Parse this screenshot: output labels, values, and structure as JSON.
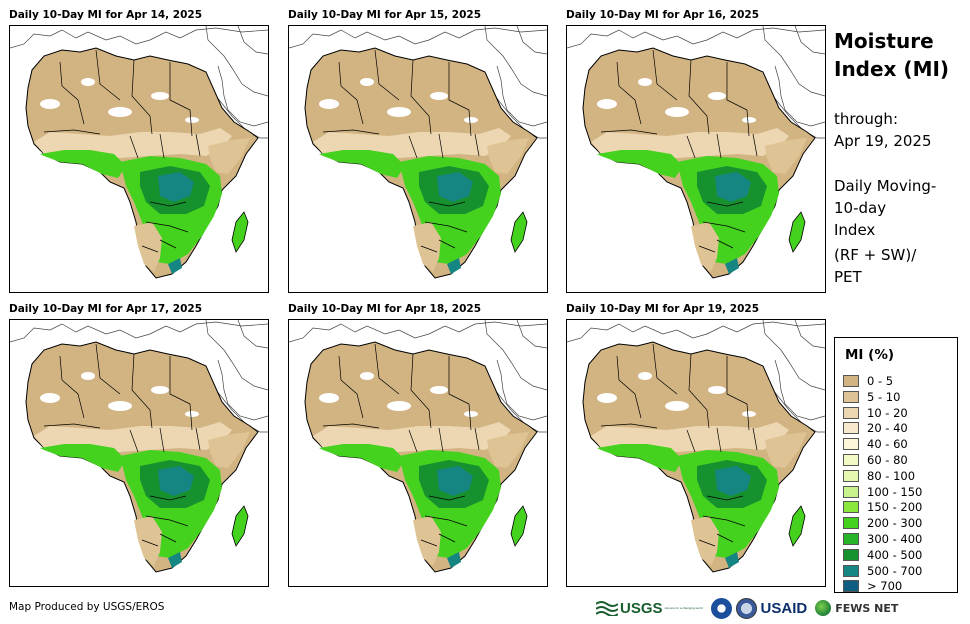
{
  "panels": [
    {
      "title": "Daily 10-Day MI for Apr 14, 2025"
    },
    {
      "title": "Daily 10-Day MI for Apr 15, 2025"
    },
    {
      "title": "Daily 10-Day MI for Apr 16, 2025"
    },
    {
      "title": "Daily 10-Day MI for Apr 17, 2025"
    },
    {
      "title": "Daily 10-Day MI for Apr 18, 2025"
    },
    {
      "title": "Daily 10-Day MI for Apr 19, 2025"
    }
  ],
  "sidebar": {
    "title_line1": "Moisture",
    "title_line2": "Index (MI)",
    "through_label": "through:",
    "through_date": "Apr 19, 2025",
    "desc_line1": "Daily Moving-",
    "desc_line2": "10-day",
    "desc_line3": "Index",
    "formula_line1": "(RF + SW)/",
    "formula_line2": "PET"
  },
  "legend": {
    "title": "MI (%)",
    "items": [
      {
        "label": "0 - 5",
        "color": "#d2b483"
      },
      {
        "label": "5 - 10",
        "color": "#dec394"
      },
      {
        "label": "10 - 20",
        "color": "#ecd7b2"
      },
      {
        "label": "20 - 40",
        "color": "#f6e9cc"
      },
      {
        "label": "40 - 60",
        "color": "#fcf7d8"
      },
      {
        "label": "60 - 80",
        "color": "#f4fac6"
      },
      {
        "label": "80 - 100",
        "color": "#e6f8b0"
      },
      {
        "label": "100 - 150",
        "color": "#c7f28c"
      },
      {
        "label": "150 - 200",
        "color": "#8ae83c"
      },
      {
        "label": "200 - 300",
        "color": "#45d21e"
      },
      {
        "label": "300 - 400",
        "color": "#28b428"
      },
      {
        "label": "400 - 500",
        "color": "#16912e"
      },
      {
        "label": "500 - 700",
        "color": "#168682"
      },
      {
        "label": "> 700",
        "color": "#0f5e82"
      }
    ]
  },
  "footer": {
    "credit": "Map Produced by USGS/EROS",
    "logo_usgs": "USGS",
    "logo_usgs_tagline": "science for a changing world",
    "logo_usaid": "USAID",
    "logo_fews": "FEWS NET"
  },
  "colors": {
    "ocean": "#ffffff",
    "desert": "#d2b483",
    "semi_arid": "#dec394",
    "green": "#45d21e",
    "dark_green": "#16912e",
    "teal": "#168682",
    "border": "#000000"
  }
}
